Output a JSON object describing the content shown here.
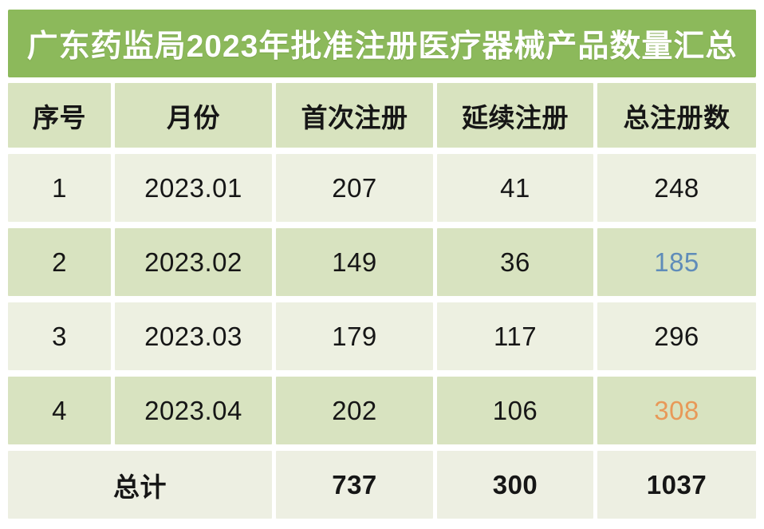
{
  "title": "广东药监局2023年批准注册医疗器械产品数量汇总",
  "colors": {
    "banner_green": "#8cb95b",
    "header_row_bg": "#d8e3bf",
    "light_row_bg": "#edf0e1",
    "green_row_bg": "#d8e3c0",
    "footer_row_bg": "#edefe2",
    "title_text": "#ffffff",
    "body_text": "#161616",
    "highlight_blue": "#5f8cb9",
    "highlight_orange": "#e89958"
  },
  "chart_data": {
    "type": "table",
    "title": "广东药监局2023年批准注册医疗器械产品数量汇总",
    "columns": [
      "序号",
      "月份",
      "首次注册",
      "延续注册",
      "总注册数"
    ],
    "rows": [
      [
        "1",
        "2023.01",
        "207",
        "41",
        "248"
      ],
      [
        "2",
        "2023.02",
        "149",
        "36",
        "185"
      ],
      [
        "3",
        "2023.03",
        "179",
        "117",
        "296"
      ],
      [
        "4",
        "2023.04",
        "202",
        "106",
        "308"
      ]
    ],
    "footer": [
      "总计",
      "737",
      "300",
      "1037"
    ],
    "highlights": [
      {
        "row_index": 1,
        "column": "总注册数",
        "value": "185",
        "color": "#5f8cb9"
      },
      {
        "row_index": 3,
        "column": "总注册数",
        "value": "308",
        "color": "#e89958"
      }
    ],
    "layout": {
      "zebra_striping": true,
      "footer_label_colspan": 2,
      "grid_gap_color": "#ffffff"
    }
  }
}
